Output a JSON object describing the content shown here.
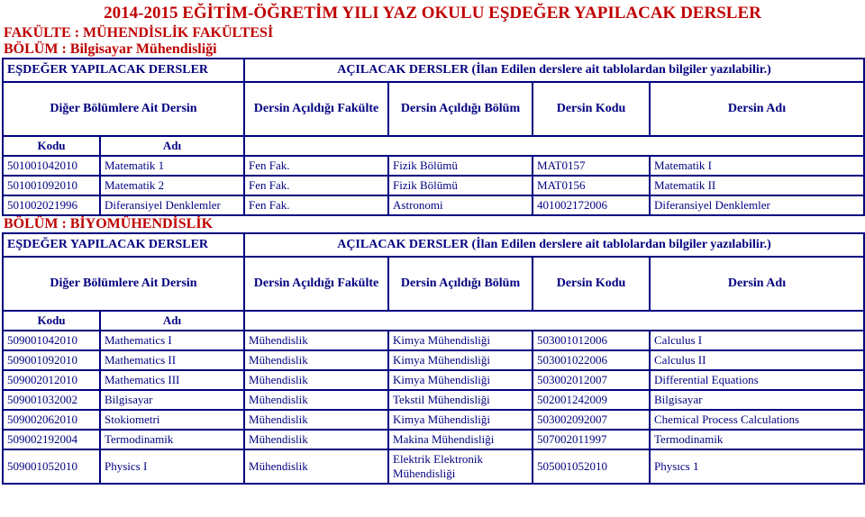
{
  "title": "2014-2015 EĞİTİM-ÖĞRETİM YILI YAZ OKULU  EŞDEĞER YAPILACAK DERSLER",
  "faculty_line": "FAKÜLTE : MÜHENDİSLİK FAKÜLTESİ",
  "dept1": "BÖLÜM : Bilgisayar Mühendisliği",
  "dept2": "BÖLÜM : BİYOMÜHENDİSLİK",
  "heading_esdeger": "EŞDEĞER YAPILACAK DERSLER",
  "heading_acilacak": "AÇILACAK DERSLER (İlan Edilen derslere ait tablolardan bilgiler yazılabilir.)",
  "heading_diger": "Diğer Bölümlere Ait Dersin",
  "col_fakulte": "Dersin Açıldığı Fakülte",
  "col_bolum": "Dersin Açıldığı Bölüm",
  "col_kod": "Dersin Kodu",
  "col_ad": "Dersin Adı",
  "small_kod": "Kodu",
  "small_ad": "Adı",
  "rows1": [
    [
      "501001042010",
      "Matematik 1",
      "Fen Fak.",
      "Fizik Bölümü",
      "MAT0157",
      "Matematik I"
    ],
    [
      "501001092010",
      "Matematik 2",
      "Fen Fak.",
      "Fizik Bölümü",
      "MAT0156",
      "Matematik II"
    ],
    [
      "501002021996",
      "Diferansiyel Denklemler",
      "Fen Fak.",
      "Astronomi",
      "401002172006",
      "Diferansiyel Denklemler"
    ]
  ],
  "rows2": [
    [
      "509001042010",
      "Mathematics I",
      "Mühendislik",
      "Kimya Mühendisliği",
      "503001012006",
      "Calculus I"
    ],
    [
      "509001092010",
      "Mathematics II",
      "Mühendislik",
      "Kimya Mühendisliği",
      "503001022006",
      "Calculus II"
    ],
    [
      "509002012010",
      "Mathematics III",
      "Mühendislik",
      "Kimya Mühendisliği",
      "503002012007",
      "Differential Equations"
    ],
    [
      "509001032002",
      "Bilgisayar",
      "Mühendislik",
      "Tekstil Mühendisliği",
      "502001242009",
      "Bilgisayar"
    ],
    [
      "509002062010",
      "Stokiometri",
      "Mühendislik",
      "Kimya Mühendisliği",
      "503002092007",
      "Chemical Process Calculations"
    ],
    [
      "509002192004",
      "Termodinamik",
      "Mühendislik",
      "Makina Mühendisliği",
      "507002011997",
      "Termodinamik"
    ],
    [
      "509001052010",
      "Physics I",
      "Mühendislik",
      "Elektrik Elektronik Mühendisliği",
      "505001052010",
      "Physıcs 1"
    ]
  ]
}
